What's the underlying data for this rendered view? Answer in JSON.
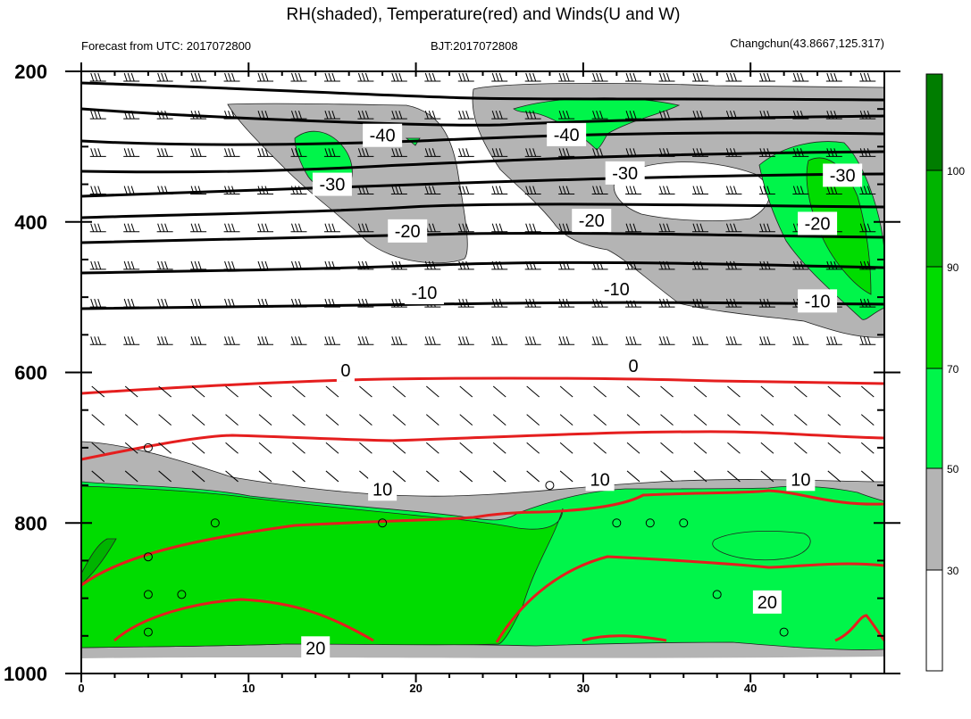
{
  "header": {
    "title": "RH(shaded), Temperature(red) and Winds(U and W)",
    "left": "Forecast from UTC: 2017072800",
    "center": "BJT:2017072808",
    "right": "Changchun(43.8667,125.317)"
  },
  "chart_data": {
    "type": "contour-crosssection",
    "title": "RH(shaded), Temperature(red) and Winds(U and W)",
    "x_ticks": [
      0,
      10,
      20,
      30,
      40
    ],
    "xlim": [
      0,
      48
    ],
    "y_ticks": [
      200,
      400,
      600,
      800,
      1000
    ],
    "ylim": [
      200,
      1000
    ],
    "colorbar": {
      "labels": [
        "30",
        "50",
        "70",
        "90",
        "100"
      ],
      "bins": [
        {
          "from": 0,
          "to": 30,
          "color": "#ffffff"
        },
        {
          "from": 30,
          "to": 50,
          "color": "#b4b4b4"
        },
        {
          "from": 50,
          "to": 70,
          "color": "#00f54a"
        },
        {
          "from": 70,
          "to": 90,
          "color": "#00dc00"
        },
        {
          "from": 90,
          "to": 100,
          "color": "#00b400"
        },
        {
          "from": 100,
          "to": 110,
          "color": "#007d00"
        }
      ]
    },
    "temperature_labels": [
      {
        "text": "-40",
        "x": 18,
        "p": 285
      },
      {
        "text": "-40",
        "x": 29,
        "p": 284
      },
      {
        "text": "-30",
        "x": 15,
        "p": 350
      },
      {
        "text": "-30",
        "x": 32.5,
        "p": 335
      },
      {
        "text": "-30",
        "x": 45.5,
        "p": 338
      },
      {
        "text": "-20",
        "x": 19.5,
        "p": 412
      },
      {
        "text": "-20",
        "x": 30.5,
        "p": 398
      },
      {
        "text": "-20",
        "x": 44,
        "p": 402
      },
      {
        "text": "-10",
        "x": 20.5,
        "p": 494
      },
      {
        "text": "-10",
        "x": 32,
        "p": 489
      },
      {
        "text": "-10",
        "x": 44,
        "p": 505
      },
      {
        "text": "0",
        "x": 15.8,
        "p": 597
      },
      {
        "text": "0",
        "x": 33,
        "p": 591
      },
      {
        "text": "10",
        "x": 18,
        "p": 755
      },
      {
        "text": "10",
        "x": 31,
        "p": 742
      },
      {
        "text": "10",
        "x": 43,
        "p": 742
      },
      {
        "text": "20",
        "x": 14,
        "p": 966
      },
      {
        "text": "20",
        "x": 41,
        "p": 905
      }
    ]
  }
}
